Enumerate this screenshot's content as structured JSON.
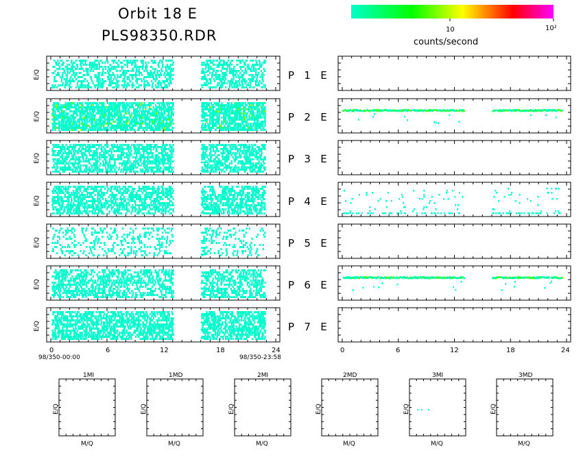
{
  "header": {
    "title_line1": "Orbit  18  E",
    "title_line2": "PLS98350.RDR"
  },
  "colorbar": {
    "stops": [
      "#00ffcc",
      "#00ff00",
      "#ffff00",
      "#ff0000",
      "#ff00ff"
    ],
    "tick_10": "10",
    "tick_100": "10²",
    "label": "counts/second"
  },
  "left_x_axis": {
    "ticks": [
      "0",
      "6",
      "12",
      "18",
      "24"
    ],
    "start_label": "98/350-00:00",
    "end_label": "98/350-23:58"
  },
  "right_x_axis": {
    "ticks": [
      "0",
      "6",
      "12",
      "18",
      "24"
    ]
  },
  "ylabel": "E/Q",
  "panel_rows": [
    {
      "p": "P",
      "n": "1",
      "e": "E"
    },
    {
      "p": "P",
      "n": "2",
      "e": "E"
    },
    {
      "p": "P",
      "n": "3",
      "e": "E"
    },
    {
      "p": "P",
      "n": "4",
      "e": "E"
    },
    {
      "p": "P",
      "n": "5",
      "e": "E"
    },
    {
      "p": "P",
      "n": "6",
      "e": "E"
    },
    {
      "p": "P",
      "n": "7",
      "e": "E"
    }
  ],
  "small_panels": [
    {
      "title": "1MI",
      "xlabel": "M/Q",
      "ylabel": "E/Q"
    },
    {
      "title": "1MD",
      "xlabel": "M/Q",
      "ylabel": "E/Q"
    },
    {
      "title": "2MI",
      "xlabel": "M/Q",
      "ylabel": "E/Q"
    },
    {
      "title": "2MD",
      "xlabel": "M/Q",
      "ylabel": "E/Q"
    },
    {
      "title": "3MI",
      "xlabel": "M/Q",
      "ylabel": "E/Q"
    },
    {
      "title": "3MD",
      "xlabel": "M/Q",
      "ylabel": "E/Q"
    }
  ],
  "chart_data": {
    "type": "heatmap",
    "x_range": [
      0,
      24
    ],
    "x_units": "hours",
    "color_scale": "log",
    "color_label": "counts/second",
    "data_gap_hours": [
      13,
      16
    ],
    "left_panels": [
      {
        "row": "P 1 E",
        "density": 0.26,
        "bright": 0.0
      },
      {
        "row": "P 2 E",
        "density": 0.48,
        "bright": 0.05
      },
      {
        "row": "P 3 E",
        "density": 0.36,
        "bright": 0.0
      },
      {
        "row": "P 4 E",
        "density": 0.34,
        "bright": 0.0
      },
      {
        "row": "P 5 E",
        "density": 0.12,
        "bright": 0.0
      },
      {
        "row": "P 6 E",
        "density": 0.3,
        "bright": 0.0
      },
      {
        "row": "P 7 E",
        "density": 0.4,
        "bright": 0.0
      }
    ],
    "right_panels": [
      {
        "row": "P 1 E",
        "pattern": "empty"
      },
      {
        "row": "P 2 E",
        "pattern": "band",
        "band_level": 0.3
      },
      {
        "row": "P 3 E",
        "pattern": "empty"
      },
      {
        "row": "P 4 E",
        "pattern": "scatter_low"
      },
      {
        "row": "P 5 E",
        "pattern": "empty"
      },
      {
        "row": "P 6 E",
        "pattern": "band",
        "band_level": 0.3
      },
      {
        "row": "P 7 E",
        "pattern": "empty"
      }
    ]
  }
}
